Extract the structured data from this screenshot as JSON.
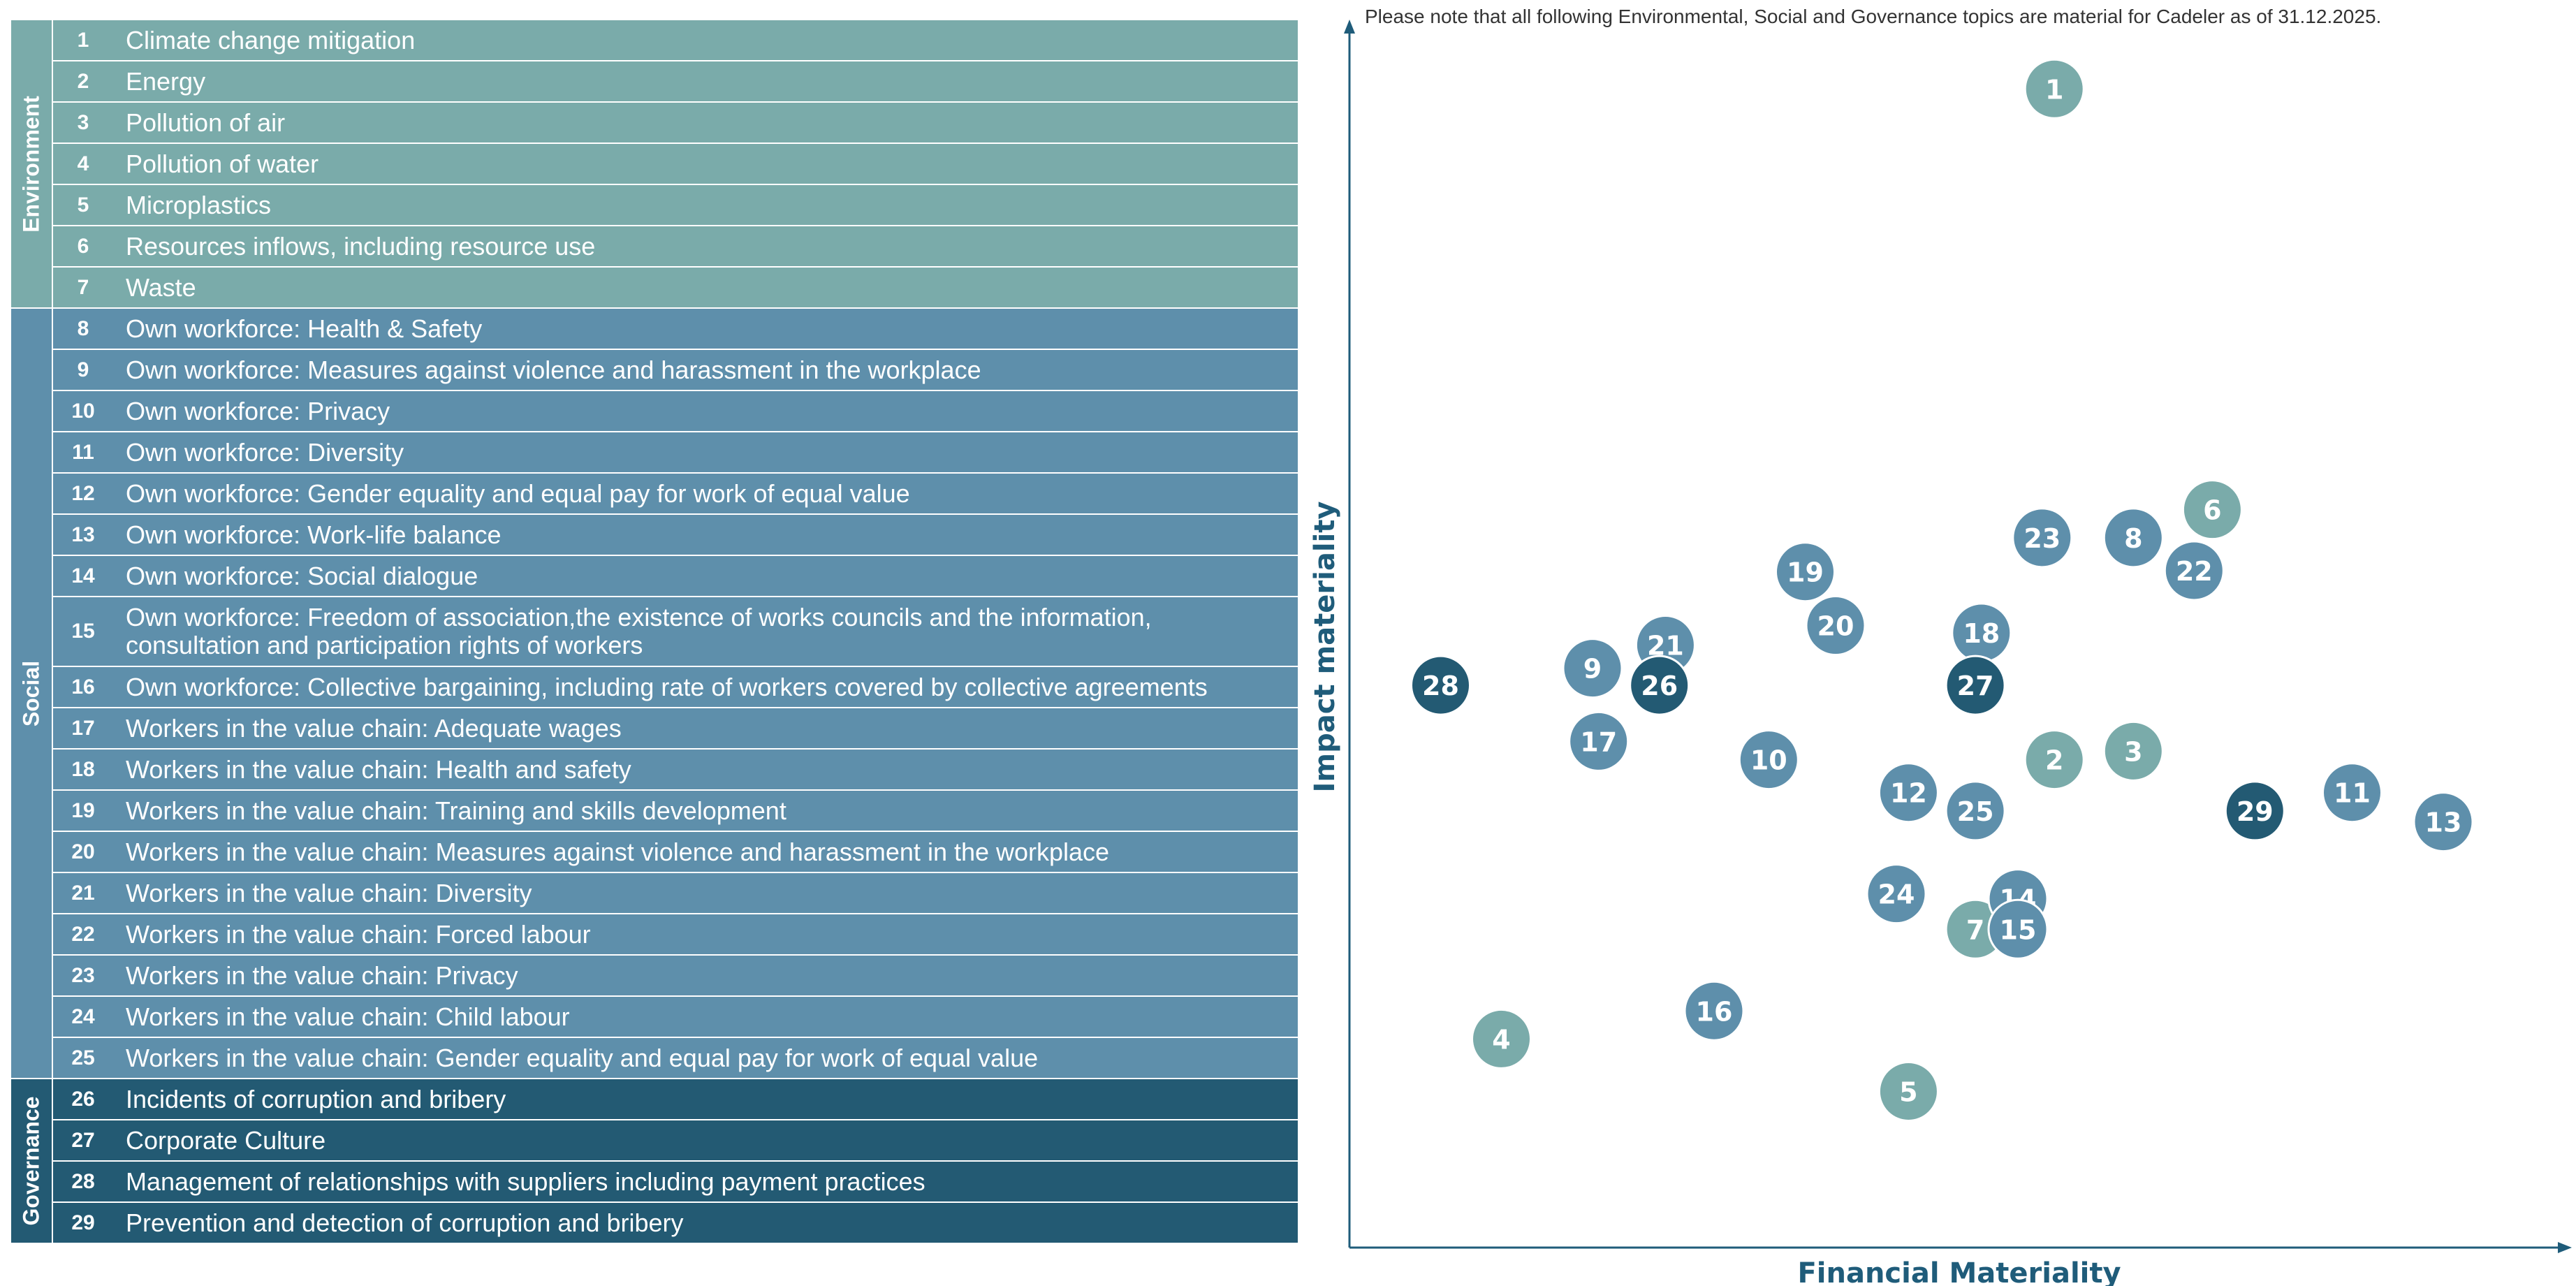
{
  "note": "Please note that all following Environmental, Social and Governance topics are material for Cadeler as of 31.12.2025.",
  "topic_groups": [
    {
      "label": "Environment",
      "color": "#7aabaa",
      "topics": [
        {
          "num": "1",
          "text": "Climate change mitigation"
        },
        {
          "num": "2",
          "text": "Energy"
        },
        {
          "num": "3",
          "text": "Pollution of air"
        },
        {
          "num": "4",
          "text": "Pollution of water"
        },
        {
          "num": "5",
          "text": "Microplastics"
        },
        {
          "num": "6",
          "text": "Resources inflows, including resource use"
        },
        {
          "num": "7",
          "text": "Waste"
        }
      ]
    },
    {
      "label": "Social",
      "color": "#5e8fab",
      "topics": [
        {
          "num": "8",
          "text": "Own workforce: Health & Safety"
        },
        {
          "num": "9",
          "text": "Own workforce: Measures against violence and harassment in the workplace"
        },
        {
          "num": "10",
          "text": "Own workforce: Privacy"
        },
        {
          "num": "11",
          "text": "Own workforce: Diversity"
        },
        {
          "num": "12",
          "text": "Own workforce: Gender equality and equal pay for work of equal value"
        },
        {
          "num": "13",
          "text": "Own workforce: Work-life balance"
        },
        {
          "num": "14",
          "text": "Own workforce: Social dialogue"
        },
        {
          "num": "15",
          "text": "Own workforce: Freedom of association,the existence of works councils and the information, consultation and participation rights of workers"
        },
        {
          "num": "16",
          "text": "Own workforce: Collective bargaining, including rate of workers covered by collective agreements"
        },
        {
          "num": "17",
          "text": "Workers in the value chain: Adequate wages"
        },
        {
          "num": "18",
          "text": "Workers in the value chain: Health and safety"
        },
        {
          "num": "19",
          "text": "Workers in the value chain: Training and skills development"
        },
        {
          "num": "20",
          "text": "Workers in the value chain: Measures against violence and harassment in the workplace"
        },
        {
          "num": "21",
          "text": "Workers in the value chain: Diversity"
        },
        {
          "num": "22",
          "text": "Workers in the value chain: Forced labour"
        },
        {
          "num": "23",
          "text": "Workers in the value chain: Privacy"
        },
        {
          "num": "24",
          "text": "Workers in the value chain: Child labour"
        },
        {
          "num": "25",
          "text": "Workers in the value chain: Gender equality and equal pay for work of equal value"
        }
      ]
    },
    {
      "label": "Governance",
      "color": "#235a73",
      "topics": [
        {
          "num": "26",
          "text": "Incidents of corruption and bribery"
        },
        {
          "num": "27",
          "text": "Corporate Culture"
        },
        {
          "num": "28",
          "text": "Management of relationships with suppliers including payment practices"
        },
        {
          "num": "29",
          "text": "Prevention and detection of corruption and bribery"
        }
      ]
    }
  ],
  "chart_data": {
    "type": "scatter",
    "title": "",
    "xlabel": "Financial Materiality",
    "ylabel": "Impact materiality",
    "xlim": [
      0,
      100
    ],
    "ylim": [
      0,
      100
    ],
    "grid": false,
    "category_colors": {
      "Environment": "#7aabaa",
      "Social": "#5e8fab",
      "Governance": "#235a73"
    },
    "points": [
      {
        "label": "1",
        "category": "Environment",
        "x": 58,
        "y": 95
      },
      {
        "label": "2",
        "category": "Environment",
        "x": 58,
        "y": 40
      },
      {
        "label": "3",
        "category": "Environment",
        "x": 64.5,
        "y": 40.7
      },
      {
        "label": "4",
        "category": "Environment",
        "x": 12.5,
        "y": 17.1
      },
      {
        "label": "5",
        "category": "Environment",
        "x": 46,
        "y": 12.8
      },
      {
        "label": "6",
        "category": "Environment",
        "x": 71,
        "y": 60.5
      },
      {
        "label": "7",
        "category": "Environment",
        "x": 51.5,
        "y": 26.1
      },
      {
        "label": "8",
        "category": "Social",
        "x": 64.5,
        "y": 58.2
      },
      {
        "label": "9",
        "category": "Social",
        "x": 20,
        "y": 47.5
      },
      {
        "label": "10",
        "category": "Social",
        "x": 34.5,
        "y": 40
      },
      {
        "label": "11",
        "category": "Social",
        "x": 82.5,
        "y": 37.3
      },
      {
        "label": "12",
        "category": "Social",
        "x": 46,
        "y": 37.3
      },
      {
        "label": "13",
        "category": "Social",
        "x": 90,
        "y": 34.9
      },
      {
        "label": "14",
        "category": "Social",
        "x": 55,
        "y": 28.6
      },
      {
        "label": "15",
        "category": "Social",
        "x": 55,
        "y": 26.1
      },
      {
        "label": "16",
        "category": "Social",
        "x": 30,
        "y": 19.4
      },
      {
        "label": "17",
        "category": "Social",
        "x": 20.5,
        "y": 41.5
      },
      {
        "label": "18",
        "category": "Social",
        "x": 52,
        "y": 50.4
      },
      {
        "label": "19",
        "category": "Social",
        "x": 37.5,
        "y": 55.4
      },
      {
        "label": "20",
        "category": "Social",
        "x": 40,
        "y": 51
      },
      {
        "label": "21",
        "category": "Social",
        "x": 26,
        "y": 49.4
      },
      {
        "label": "22",
        "category": "Social",
        "x": 69.5,
        "y": 55.5
      },
      {
        "label": "23",
        "category": "Social",
        "x": 57,
        "y": 58.2
      },
      {
        "label": "24",
        "category": "Social",
        "x": 45,
        "y": 29
      },
      {
        "label": "25",
        "category": "Social",
        "x": 51.5,
        "y": 35.8
      },
      {
        "label": "26",
        "category": "Governance",
        "x": 25.5,
        "y": 46.1
      },
      {
        "label": "27",
        "category": "Governance",
        "x": 51.5,
        "y": 46.1
      },
      {
        "label": "28",
        "category": "Governance",
        "x": 7.5,
        "y": 46.1
      },
      {
        "label": "29",
        "category": "Governance",
        "x": 74.5,
        "y": 35.8
      }
    ]
  }
}
